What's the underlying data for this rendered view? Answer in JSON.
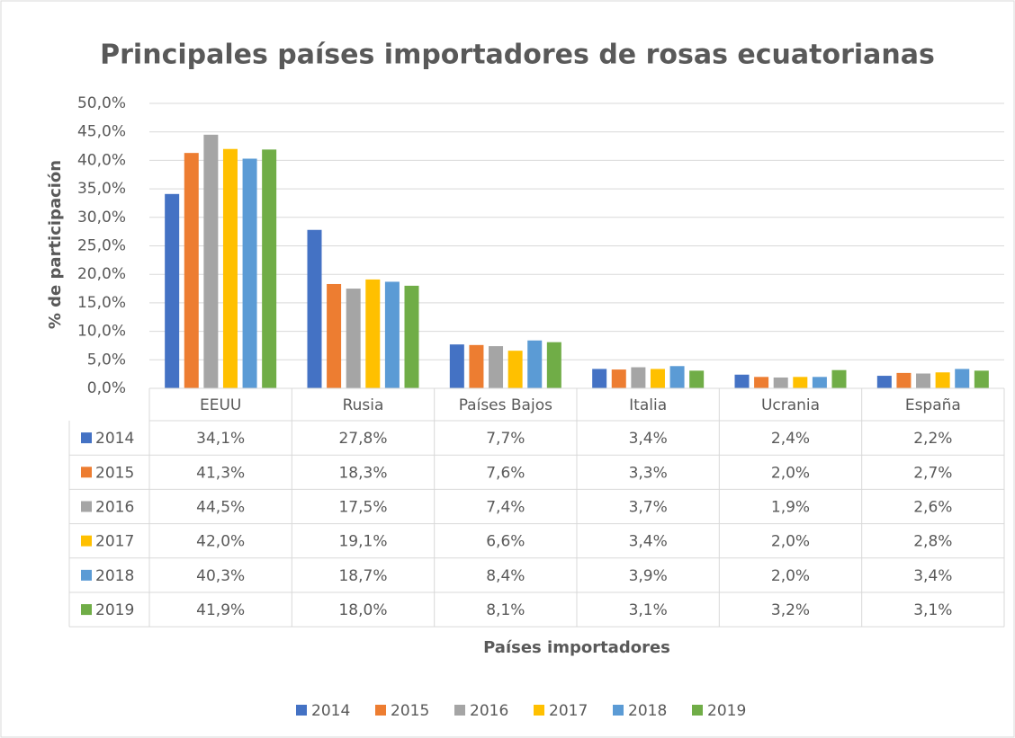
{
  "chart_data": {
    "type": "bar",
    "title": "Principales países importadores de rosas ecuatorianas",
    "xlabel": "Países importadores",
    "ylabel": "% de participación",
    "categories": [
      "EEUU",
      "Rusia",
      "Países Bajos",
      "Italia",
      "Ucrania",
      "España"
    ],
    "series": [
      {
        "name": "2014",
        "color": "#4472c4",
        "values": [
          34.1,
          27.8,
          7.7,
          3.4,
          2.4,
          2.2
        ],
        "value_labels": [
          "34,1%",
          "27,8%",
          "7,7%",
          "3,4%",
          "2,4%",
          "2,2%"
        ]
      },
      {
        "name": "2015",
        "color": "#ed7d31",
        "values": [
          41.3,
          18.3,
          7.6,
          3.3,
          2.0,
          2.7
        ],
        "value_labels": [
          "41,3%",
          "18,3%",
          "7,6%",
          "3,3%",
          "2,0%",
          "2,7%"
        ]
      },
      {
        "name": "2016",
        "color": "#a5a5a5",
        "values": [
          44.5,
          17.5,
          7.4,
          3.7,
          1.9,
          2.6
        ],
        "value_labels": [
          "44,5%",
          "17,5%",
          "7,4%",
          "3,7%",
          "1,9%",
          "2,6%"
        ]
      },
      {
        "name": "2017",
        "color": "#ffc000",
        "values": [
          42.0,
          19.1,
          6.6,
          3.4,
          2.0,
          2.8
        ],
        "value_labels": [
          "42,0%",
          "19,1%",
          "6,6%",
          "3,4%",
          "2,0%",
          "2,8%"
        ]
      },
      {
        "name": "2018",
        "color": "#5b9bd5",
        "values": [
          40.3,
          18.7,
          8.4,
          3.9,
          2.0,
          3.4
        ],
        "value_labels": [
          "40,3%",
          "18,7%",
          "8,4%",
          "3,9%",
          "2,0%",
          "3,4%"
        ]
      },
      {
        "name": "2019",
        "color": "#70ad47",
        "values": [
          41.9,
          18.0,
          8.1,
          3.1,
          3.2,
          3.1
        ],
        "value_labels": [
          "41,9%",
          "18,0%",
          "8,1%",
          "3,1%",
          "3,2%",
          "3,1%"
        ]
      }
    ],
    "ylim": [
      0,
      50
    ],
    "yticks": [
      {
        "value": 0,
        "label": "0,0%"
      },
      {
        "value": 5,
        "label": "5,0%"
      },
      {
        "value": 10,
        "label": "10,0%"
      },
      {
        "value": 15,
        "label": "15,0%"
      },
      {
        "value": 20,
        "label": "20,0%"
      },
      {
        "value": 25,
        "label": "25,0%"
      },
      {
        "value": 30,
        "label": "30,0%"
      },
      {
        "value": 35,
        "label": "35,0%"
      },
      {
        "value": 40,
        "label": "40,0%"
      },
      {
        "value": 45,
        "label": "45,0%"
      },
      {
        "value": 50,
        "label": "50,0%"
      }
    ],
    "grid": true,
    "data_table": true,
    "legend": "bottom"
  }
}
